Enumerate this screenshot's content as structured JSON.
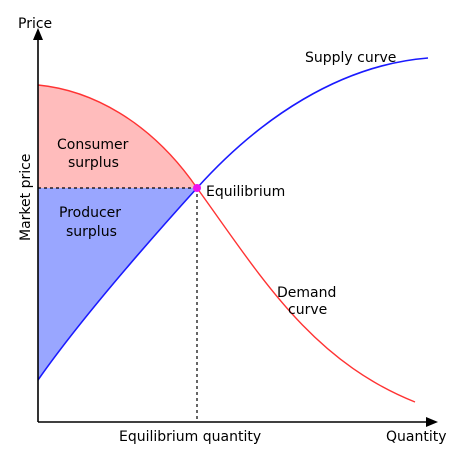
{
  "diagram": {
    "labels": {
      "y_axis": "Price",
      "x_axis": "Quantity",
      "market_price": "Market price",
      "equilibrium_quantity": "Equilibrium quantity",
      "supply": "Supply curve",
      "demand_line1": "Demand",
      "demand_line2": "curve",
      "equilibrium": "Equilibrium",
      "consumer_line1": "Consumer",
      "consumer_line2": "surplus",
      "producer_line1": "Producer",
      "producer_line2": "surplus"
    },
    "colors": {
      "supply": "#1a1aff",
      "demand": "#ff3333",
      "consumer_fill": "#ffbcbc",
      "producer_fill": "#99a6ff",
      "equilibrium_point": "#ee11ee",
      "axis": "#000000"
    }
  }
}
